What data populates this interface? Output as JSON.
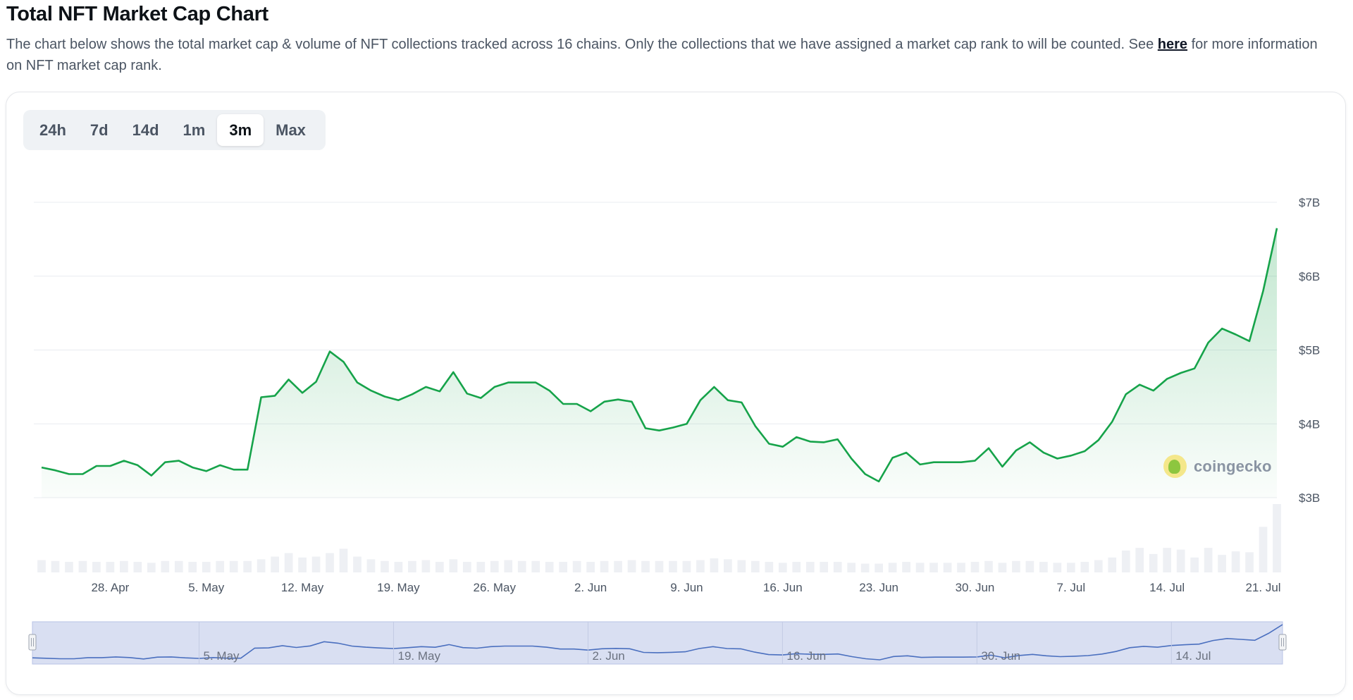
{
  "header": {
    "title": "Total NFT Market Cap Chart",
    "description": "The chart below shows the total market cap & volume of NFT collections tracked across 16 chains. Only the collections that we have assigned a market cap rank to will be counted. See",
    "link_text": "here",
    "description_end": "for more information on NFT market cap rank."
  },
  "range_buttons": [
    "24h",
    "7d",
    "14d",
    "1m",
    "3m",
    "Max"
  ],
  "active_range": "3m",
  "watermark": "coingecko",
  "colors": {
    "line": "#16a34a",
    "volume": "#eef0f4",
    "navigator_fill": "#d9dff2",
    "navigator_line": "#4a6fbf"
  },
  "chart_data": {
    "type": "line",
    "x": [
      "2024-04-23",
      "2024-04-24",
      "2024-04-25",
      "2024-04-26",
      "2024-04-27",
      "2024-04-28",
      "2024-04-29",
      "2024-04-30",
      "2024-05-01",
      "2024-05-02",
      "2024-05-03",
      "2024-05-04",
      "2024-05-05",
      "2024-05-06",
      "2024-05-07",
      "2024-05-08",
      "2024-05-09",
      "2024-05-10",
      "2024-05-11",
      "2024-05-12",
      "2024-05-13",
      "2024-05-14",
      "2024-05-15",
      "2024-05-16",
      "2024-05-17",
      "2024-05-18",
      "2024-05-19",
      "2024-05-20",
      "2024-05-21",
      "2024-05-22",
      "2024-05-23",
      "2024-05-24",
      "2024-05-25",
      "2024-05-26",
      "2024-05-27",
      "2024-05-28",
      "2024-05-29",
      "2024-05-30",
      "2024-05-31",
      "2024-06-01",
      "2024-06-02",
      "2024-06-03",
      "2024-06-04",
      "2024-06-05",
      "2024-06-06",
      "2024-06-07",
      "2024-06-08",
      "2024-06-09",
      "2024-06-10",
      "2024-06-11",
      "2024-06-12",
      "2024-06-13",
      "2024-06-14",
      "2024-06-15",
      "2024-06-16",
      "2024-06-17",
      "2024-06-18",
      "2024-06-19",
      "2024-06-20",
      "2024-06-21",
      "2024-06-22",
      "2024-06-23",
      "2024-06-24",
      "2024-06-25",
      "2024-06-26",
      "2024-06-27",
      "2024-06-28",
      "2024-06-29",
      "2024-06-30",
      "2024-07-01",
      "2024-07-02",
      "2024-07-03",
      "2024-07-04",
      "2024-07-05",
      "2024-07-06",
      "2024-07-07",
      "2024-07-08",
      "2024-07-09",
      "2024-07-10",
      "2024-07-11",
      "2024-07-12",
      "2024-07-13",
      "2024-07-14",
      "2024-07-15",
      "2024-07-16",
      "2024-07-17",
      "2024-07-18",
      "2024-07-19",
      "2024-07-20",
      "2024-07-21",
      "2024-07-22"
    ],
    "market_cap_b": [
      3.41,
      3.37,
      3.32,
      3.32,
      3.43,
      3.43,
      3.5,
      3.44,
      3.3,
      3.48,
      3.5,
      3.41,
      3.36,
      3.44,
      3.38,
      3.38,
      4.36,
      4.38,
      4.6,
      4.42,
      4.57,
      4.98,
      4.84,
      4.56,
      4.45,
      4.37,
      4.32,
      4.4,
      4.5,
      4.44,
      4.7,
      4.41,
      4.35,
      4.5,
      4.56,
      4.56,
      4.56,
      4.45,
      4.27,
      4.27,
      4.17,
      4.3,
      4.33,
      4.3,
      3.94,
      3.91,
      3.95,
      4.0,
      4.32,
      4.5,
      4.32,
      4.29,
      3.97,
      3.73,
      3.69,
      3.82,
      3.76,
      3.75,
      3.79,
      3.53,
      3.32,
      3.22,
      3.54,
      3.61,
      3.45,
      3.48,
      3.48,
      3.48,
      3.5,
      3.67,
      3.42,
      3.64,
      3.75,
      3.61,
      3.53,
      3.57,
      3.63,
      3.78,
      4.03,
      4.4,
      4.53,
      4.45,
      4.61,
      4.69,
      4.75,
      5.1,
      5.29,
      5.21,
      5.12,
      5.8,
      6.65
    ],
    "volume_m": [
      14,
      13,
      12,
      13,
      12,
      12,
      13,
      12,
      11,
      13,
      13,
      12,
      12,
      13,
      13,
      13,
      15,
      18,
      22,
      17,
      18,
      22,
      27,
      18,
      15,
      13,
      12,
      13,
      14,
      12,
      15,
      12,
      12,
      13,
      14,
      13,
      13,
      12,
      12,
      13,
      12,
      13,
      13,
      14,
      13,
      13,
      13,
      13,
      14,
      16,
      15,
      14,
      13,
      12,
      11,
      12,
      12,
      12,
      12,
      11,
      10,
      10,
      11,
      12,
      11,
      11,
      11,
      11,
      12,
      13,
      11,
      13,
      13,
      12,
      11,
      11,
      12,
      14,
      17,
      25,
      28,
      21,
      28,
      26,
      17,
      28,
      20,
      24,
      23,
      52,
      78
    ],
    "x_ticks": [
      "28. Apr",
      "5. May",
      "12. May",
      "19. May",
      "26. May",
      "2. Jun",
      "9. Jun",
      "16. Jun",
      "23. Jun",
      "30. Jun",
      "7. Jul",
      "14. Jul",
      "21. Jul"
    ],
    "y_ticks": [
      "$3B",
      "$4B",
      "$5B",
      "$6B",
      "$7B"
    ],
    "ylim": [
      3,
      7
    ],
    "navigator_ticks": [
      "5. May",
      "19. May",
      "2. Jun",
      "16. Jun",
      "30. Jun",
      "14. Jul"
    ],
    "grid": true,
    "legend": "none"
  }
}
